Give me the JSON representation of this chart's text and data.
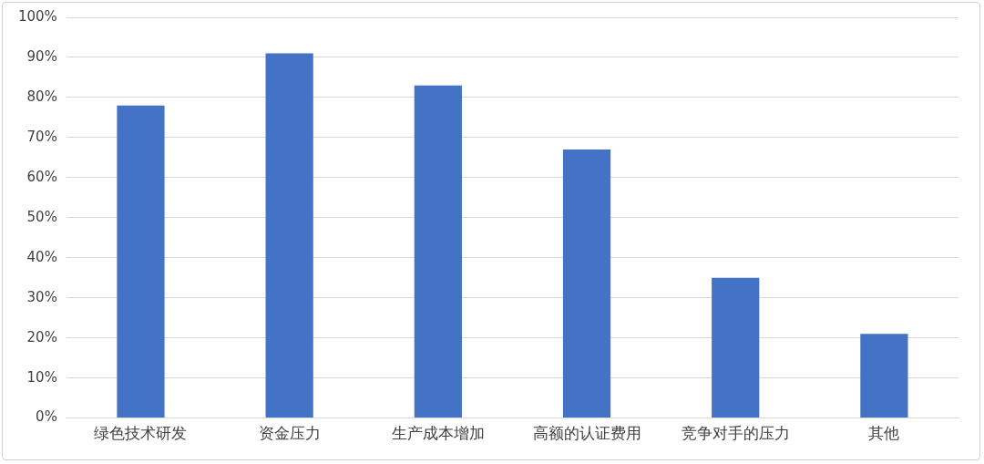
{
  "chart_data": {
    "type": "bar",
    "categories": [
      "绿色技术研发",
      "资金压力",
      "生产成本增加",
      "高额的认证费用",
      "竞争对手的压力",
      "其他"
    ],
    "values": [
      78,
      91,
      83,
      67,
      35,
      21
    ],
    "color": "#4472c4",
    "ylim": [
      0,
      100
    ],
    "yticks": [
      {
        "value": 0,
        "label": "0%"
      },
      {
        "value": 10,
        "label": "10%"
      },
      {
        "value": 20,
        "label": "20%"
      },
      {
        "value": 30,
        "label": "30%"
      },
      {
        "value": 40,
        "label": "40%"
      },
      {
        "value": 50,
        "label": "50%"
      },
      {
        "value": 60,
        "label": "60%"
      },
      {
        "value": 70,
        "label": "70%"
      },
      {
        "value": 80,
        "label": "80%"
      },
      {
        "value": 90,
        "label": "90%"
      },
      {
        "value": 100,
        "label": "100%"
      }
    ],
    "grid": "y",
    "legend": false
  }
}
